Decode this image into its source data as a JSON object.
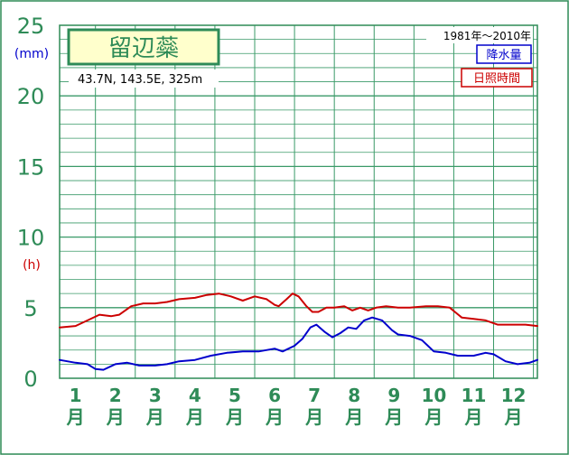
{
  "station": {
    "name": "留辺蘂",
    "coords": "43.7N,  143.5E,  325m",
    "period": "1981年〜2010年"
  },
  "legend": {
    "precip_label": "降水量",
    "sunshine_label": "日照時間"
  },
  "colors": {
    "frame_green": "#2e8b57",
    "grid_green": "#3a9a68",
    "name_box_fill": "#ffffcc",
    "precip_blue": "#0000cc",
    "sunshine_red": "#cc0000",
    "tick_green": "#2e8b57"
  },
  "chart_data": {
    "type": "line",
    "x": [
      1,
      2,
      3,
      4,
      5,
      6,
      7,
      8,
      9,
      10,
      11,
      12
    ],
    "xlim": [
      0.6,
      12.6
    ],
    "ylim": [
      0,
      25
    ],
    "y_ticks": [
      "0",
      "5",
      "10",
      "15",
      "20",
      "25"
    ],
    "y_unit_precip": "(mm)",
    "y_unit_sunshine": "(h)",
    "month_labels": [
      "1",
      "2",
      "3",
      "4",
      "5",
      "6",
      "7",
      "8",
      "9",
      "10",
      "11",
      "12"
    ],
    "month_suffix": "月",
    "grid": true,
    "legend_position": "top-right",
    "series": [
      {
        "name": "降水量",
        "color": "#0000cc",
        "points": [
          [
            0.6,
            1.3
          ],
          [
            1.0,
            1.1
          ],
          [
            1.3,
            1.0
          ],
          [
            1.5,
            0.65
          ],
          [
            1.7,
            0.6
          ],
          [
            2.0,
            1.0
          ],
          [
            2.3,
            1.1
          ],
          [
            2.6,
            0.9
          ],
          [
            3.0,
            0.9
          ],
          [
            3.3,
            1.0
          ],
          [
            3.6,
            1.2
          ],
          [
            4.0,
            1.3
          ],
          [
            4.4,
            1.6
          ],
          [
            4.8,
            1.8
          ],
          [
            5.2,
            1.9
          ],
          [
            5.6,
            1.9
          ],
          [
            6.0,
            2.1
          ],
          [
            6.2,
            1.9
          ],
          [
            6.5,
            2.3
          ],
          [
            6.7,
            2.8
          ],
          [
            6.9,
            3.6
          ],
          [
            7.05,
            3.8
          ],
          [
            7.25,
            3.3
          ],
          [
            7.45,
            2.9
          ],
          [
            7.65,
            3.2
          ],
          [
            7.85,
            3.6
          ],
          [
            8.05,
            3.5
          ],
          [
            8.25,
            4.1
          ],
          [
            8.45,
            4.3
          ],
          [
            8.7,
            4.1
          ],
          [
            8.95,
            3.4
          ],
          [
            9.1,
            3.1
          ],
          [
            9.4,
            3.0
          ],
          [
            9.7,
            2.7
          ],
          [
            10.0,
            1.9
          ],
          [
            10.3,
            1.8
          ],
          [
            10.6,
            1.6
          ],
          [
            11.0,
            1.6
          ],
          [
            11.3,
            1.8
          ],
          [
            11.5,
            1.7
          ],
          [
            11.8,
            1.2
          ],
          [
            12.1,
            1.0
          ],
          [
            12.4,
            1.1
          ],
          [
            12.6,
            1.3
          ]
        ]
      },
      {
        "name": "日照時間",
        "color": "#cc0000",
        "points": [
          [
            0.6,
            3.6
          ],
          [
            1.0,
            3.7
          ],
          [
            1.3,
            4.1
          ],
          [
            1.6,
            4.5
          ],
          [
            1.9,
            4.4
          ],
          [
            2.1,
            4.5
          ],
          [
            2.4,
            5.1
          ],
          [
            2.7,
            5.3
          ],
          [
            3.0,
            5.3
          ],
          [
            3.3,
            5.4
          ],
          [
            3.6,
            5.6
          ],
          [
            4.0,
            5.7
          ],
          [
            4.3,
            5.9
          ],
          [
            4.6,
            6.0
          ],
          [
            4.9,
            5.8
          ],
          [
            5.2,
            5.5
          ],
          [
            5.5,
            5.8
          ],
          [
            5.8,
            5.6
          ],
          [
            6.0,
            5.2
          ],
          [
            6.1,
            5.1
          ],
          [
            6.3,
            5.6
          ],
          [
            6.45,
            6.0
          ],
          [
            6.6,
            5.8
          ],
          [
            6.8,
            5.1
          ],
          [
            6.95,
            4.7
          ],
          [
            7.1,
            4.7
          ],
          [
            7.3,
            5.0
          ],
          [
            7.5,
            5.0
          ],
          [
            7.75,
            5.1
          ],
          [
            7.95,
            4.8
          ],
          [
            8.15,
            5.0
          ],
          [
            8.35,
            4.8
          ],
          [
            8.55,
            5.0
          ],
          [
            8.8,
            5.1
          ],
          [
            9.1,
            5.0
          ],
          [
            9.4,
            5.0
          ],
          [
            9.8,
            5.1
          ],
          [
            10.1,
            5.1
          ],
          [
            10.4,
            5.0
          ],
          [
            10.7,
            4.3
          ],
          [
            11.0,
            4.2
          ],
          [
            11.3,
            4.1
          ],
          [
            11.6,
            3.8
          ],
          [
            11.9,
            3.8
          ],
          [
            12.3,
            3.8
          ],
          [
            12.6,
            3.7
          ]
        ]
      }
    ]
  }
}
